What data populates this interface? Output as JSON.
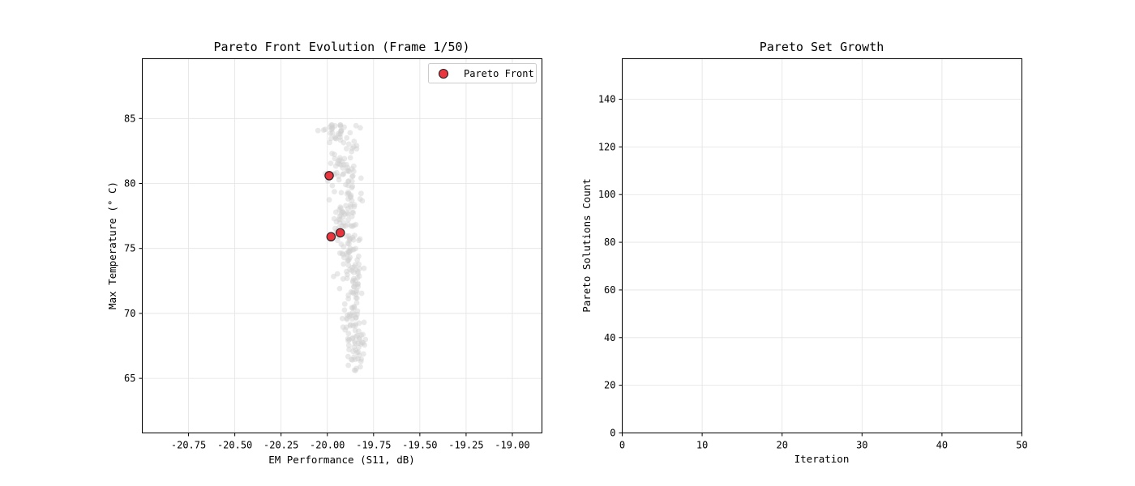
{
  "chart_data": [
    {
      "type": "scatter",
      "title": "Pareto Front Evolution (Frame 1/50)",
      "xlabel": "EM Performance (S11, dB)",
      "ylabel": "Max Temperature (° C)",
      "xlim": [
        -21.0,
        -18.84
      ],
      "ylim": [
        60.8,
        89.6
      ],
      "xticks": [
        -20.75,
        -20.5,
        -20.25,
        -20.0,
        -19.75,
        -19.5,
        -19.25,
        -19.0
      ],
      "xtick_labels": [
        "-20.75",
        "-20.50",
        "-20.25",
        "-20.00",
        "-19.75",
        "-19.50",
        "-19.25",
        "-19.00"
      ],
      "yticks": [
        65,
        70,
        75,
        80,
        85
      ],
      "ytick_labels": [
        "65",
        "70",
        "75",
        "80",
        "85"
      ],
      "grid": true,
      "legend": {
        "position": "top-right",
        "entries": [
          "Pareto Front"
        ]
      },
      "series": [
        {
          "name": "Pareto Front",
          "color": "#e8202a",
          "edge_color": "#222222",
          "points": [
            [
              -19.99,
              80.6
            ],
            [
              -19.93,
              76.2
            ],
            [
              -19.98,
              75.9
            ]
          ]
        }
      ],
      "background_cloud": {
        "color": "#cfcfcf",
        "count": 300,
        "x_center": -19.93,
        "x_spread": 0.06,
        "y_range": [
          65.5,
          84.5
        ]
      }
    },
    {
      "type": "line",
      "title": "Pareto Set Growth",
      "xlabel": "Iteration",
      "ylabel": "Pareto Solutions Count",
      "xlim": [
        0,
        50
      ],
      "ylim": [
        0,
        157
      ],
      "xticks": [
        0,
        10,
        20,
        30,
        40,
        50
      ],
      "xtick_labels": [
        "0",
        "10",
        "20",
        "30",
        "40",
        "50"
      ],
      "yticks": [
        0,
        20,
        40,
        60,
        80,
        100,
        120,
        140
      ],
      "ytick_labels": [
        "0",
        "20",
        "40",
        "60",
        "80",
        "100",
        "120",
        "140"
      ],
      "grid": true,
      "series": []
    }
  ]
}
